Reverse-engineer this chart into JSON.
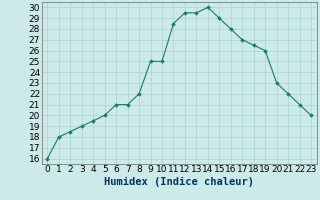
{
  "x": [
    0,
    1,
    2,
    3,
    4,
    5,
    6,
    7,
    8,
    9,
    10,
    11,
    12,
    13,
    14,
    15,
    16,
    17,
    18,
    19,
    20,
    21,
    22,
    23
  ],
  "y": [
    16,
    18,
    18.5,
    19,
    19.5,
    20,
    21,
    21,
    22,
    25,
    25,
    28.5,
    29.5,
    29.5,
    30,
    29,
    28,
    27,
    26.5,
    26,
    23,
    22,
    21,
    20
  ],
  "line_color": "#1a7a6e",
  "marker": "D",
  "marker_size": 1.8,
  "bg_color": "#cceae7",
  "grid_color": "#aad4d0",
  "xlabel": "Humidex (Indice chaleur)",
  "xlim": [
    -0.5,
    23.5
  ],
  "ylim": [
    15.5,
    30.5
  ],
  "yticks": [
    16,
    17,
    18,
    19,
    20,
    21,
    22,
    23,
    24,
    25,
    26,
    27,
    28,
    29,
    30
  ],
  "xticks": [
    0,
    1,
    2,
    3,
    4,
    5,
    6,
    7,
    8,
    9,
    10,
    11,
    12,
    13,
    14,
    15,
    16,
    17,
    18,
    19,
    20,
    21,
    22,
    23
  ],
  "tick_fontsize": 6.5,
  "xlabel_fontsize": 7.5
}
